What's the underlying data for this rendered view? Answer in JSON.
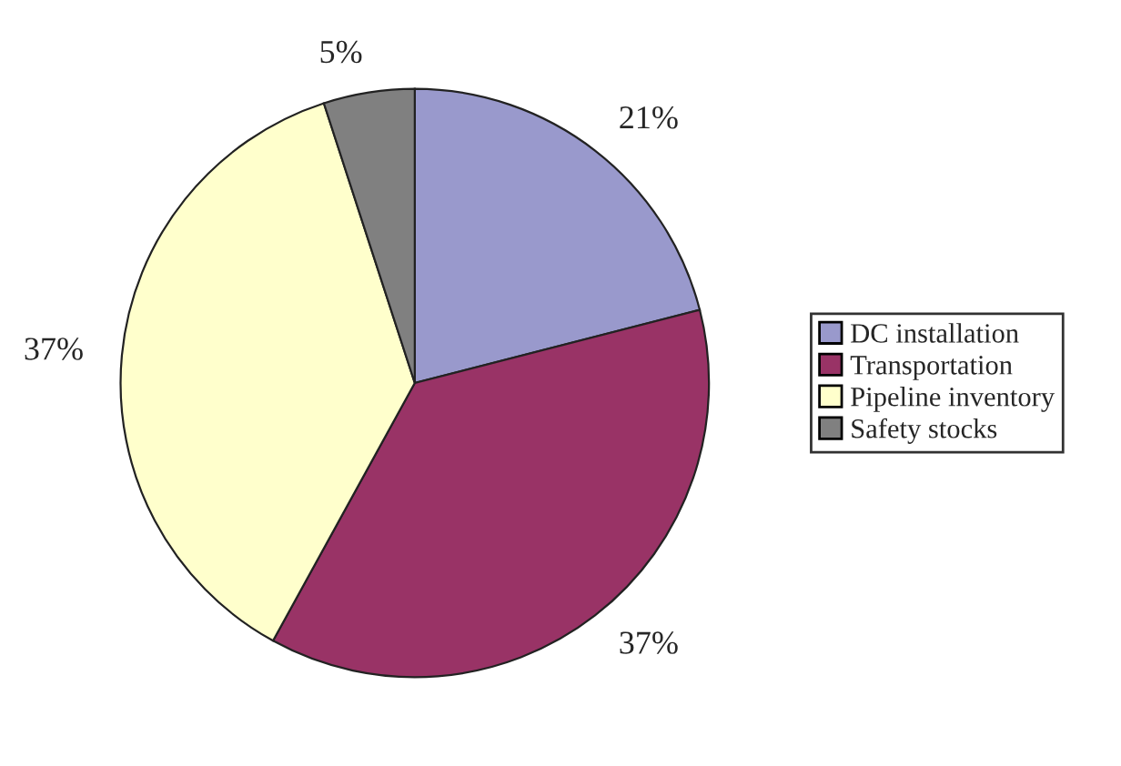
{
  "chart_data": {
    "type": "pie",
    "categories": [
      "DC installation",
      "Transportation",
      "Pipeline inventory",
      "Safety stocks"
    ],
    "values": [
      21,
      37,
      37,
      5
    ],
    "colors": [
      "#9999cc",
      "#993366",
      "#ffffcc",
      "#808080"
    ],
    "value_labels": [
      "21%",
      "37%",
      "37%",
      "5%"
    ],
    "legend": "right"
  }
}
